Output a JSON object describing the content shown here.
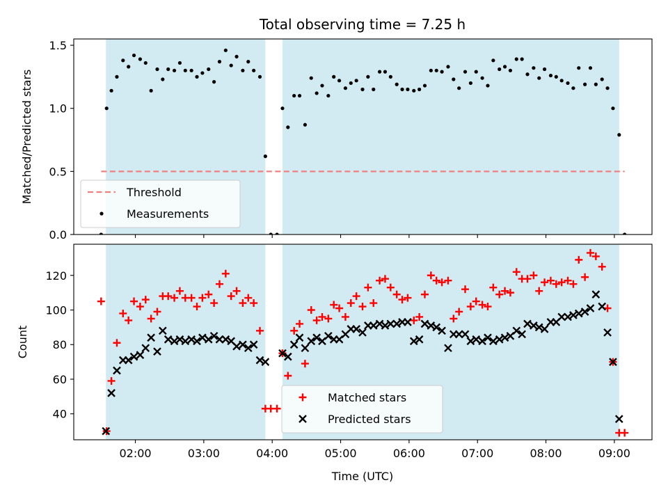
{
  "chart_data": {
    "title": "Total observing time = 7.25 h",
    "xlabel": "Time (UTC)",
    "x_unit": "UTC time (decimal hours)",
    "xlim": [
      1.1,
      9.55
    ],
    "xticks": [
      {
        "value": 2,
        "label": "02:00"
      },
      {
        "value": 3,
        "label": "03:00"
      },
      {
        "value": 4,
        "label": "04:00"
      },
      {
        "value": 5,
        "label": "05:00"
      },
      {
        "value": 6,
        "label": "06:00"
      },
      {
        "value": 7,
        "label": "07:00"
      },
      {
        "value": 8,
        "label": "08:00"
      },
      {
        "value": 9,
        "label": "09:00"
      }
    ],
    "shaded_intervals": [
      [
        1.57,
        3.9
      ],
      [
        4.15,
        9.07
      ]
    ],
    "shade_color": "#add8e6",
    "panels": [
      {
        "type": "scatter",
        "ylabel": "Matched/Predicted stars",
        "ylim": [
          0,
          1.55
        ],
        "yticks": [
          {
            "value": 0.0,
            "label": "0.0"
          },
          {
            "value": 0.5,
            "label": "0.5"
          },
          {
            "value": 1.0,
            "label": "1.0"
          },
          {
            "value": 1.5,
            "label": "1.5"
          }
        ],
        "threshold": {
          "name": "Threshold",
          "value": 0.5,
          "x_range": [
            1.5,
            9.15
          ],
          "color": "#f08080"
        },
        "series": [
          {
            "name": "Measurements",
            "marker": "dot",
            "color": "#000000",
            "x": [
              1.5,
              1.58,
              1.65,
              1.73,
              1.82,
              1.9,
              1.98,
              2.07,
              2.15,
              2.23,
              2.32,
              2.4,
              2.48,
              2.57,
              2.65,
              2.73,
              2.82,
              2.9,
              2.98,
              3.07,
              3.15,
              3.23,
              3.32,
              3.4,
              3.48,
              3.57,
              3.65,
              3.73,
              3.82,
              3.9,
              3.98,
              4.07,
              4.15,
              4.23,
              4.32,
              4.4,
              4.48,
              4.57,
              4.65,
              4.73,
              4.82,
              4.9,
              4.98,
              5.07,
              5.15,
              5.23,
              5.32,
              5.4,
              5.48,
              5.57,
              5.65,
              5.73,
              5.82,
              5.9,
              5.98,
              6.07,
              6.15,
              6.23,
              6.32,
              6.4,
              6.48,
              6.57,
              6.65,
              6.73,
              6.82,
              6.9,
              6.98,
              7.07,
              7.15,
              7.23,
              7.32,
              7.4,
              7.48,
              7.57,
              7.65,
              7.73,
              7.82,
              7.9,
              7.98,
              8.07,
              8.15,
              8.23,
              8.32,
              8.4,
              8.48,
              8.57,
              8.65,
              8.73,
              8.82,
              8.9,
              8.98,
              9.07,
              9.15
            ],
            "values": [
              0.0,
              1.0,
              1.14,
              1.25,
              1.38,
              1.33,
              1.42,
              1.39,
              1.36,
              1.14,
              1.31,
              1.23,
              1.31,
              1.3,
              1.36,
              1.3,
              1.3,
              1.25,
              1.28,
              1.31,
              1.21,
              1.37,
              1.46,
              1.34,
              1.41,
              1.3,
              1.37,
              1.3,
              1.25,
              0.62,
              0.0,
              0.0,
              1.0,
              0.85,
              1.1,
              1.1,
              0.87,
              1.24,
              1.12,
              1.18,
              1.1,
              1.25,
              1.22,
              1.16,
              1.2,
              1.22,
              1.15,
              1.25,
              1.15,
              1.29,
              1.29,
              1.25,
              1.19,
              1.15,
              1.15,
              1.14,
              1.15,
              1.18,
              1.3,
              1.3,
              1.29,
              1.33,
              1.23,
              1.16,
              1.29,
              1.2,
              1.29,
              1.24,
              1.18,
              1.38,
              1.31,
              1.33,
              1.3,
              1.39,
              1.39,
              1.27,
              1.32,
              1.24,
              1.31,
              1.26,
              1.25,
              1.22,
              1.2,
              1.16,
              1.32,
              1.19,
              1.32,
              1.19,
              1.23,
              1.16,
              1.0,
              0.79,
              0.0
            ]
          }
        ],
        "legend": {
          "position": "lower-left",
          "entries": [
            "Threshold",
            "Measurements"
          ]
        }
      },
      {
        "type": "scatter",
        "ylabel": "Count",
        "ylim": [
          25,
          138
        ],
        "yticks": [
          {
            "value": 40,
            "label": "40"
          },
          {
            "value": 60,
            "label": "60"
          },
          {
            "value": 80,
            "label": "80"
          },
          {
            "value": 100,
            "label": "100"
          },
          {
            "value": 120,
            "label": "120"
          }
        ],
        "series": [
          {
            "name": "Matched stars",
            "marker": "plus",
            "color": "#ff0000",
            "x": [
              1.5,
              1.58,
              1.65,
              1.73,
              1.82,
              1.9,
              1.98,
              2.07,
              2.15,
              2.23,
              2.32,
              2.4,
              2.48,
              2.57,
              2.65,
              2.73,
              2.82,
              2.9,
              2.98,
              3.07,
              3.15,
              3.23,
              3.32,
              3.4,
              3.48,
              3.57,
              3.65,
              3.73,
              3.82,
              3.9,
              3.98,
              4.07,
              4.15,
              4.23,
              4.32,
              4.4,
              4.48,
              4.57,
              4.65,
              4.73,
              4.82,
              4.9,
              4.98,
              5.07,
              5.15,
              5.23,
              5.32,
              5.4,
              5.48,
              5.57,
              5.65,
              5.73,
              5.82,
              5.9,
              5.98,
              6.07,
              6.15,
              6.23,
              6.32,
              6.4,
              6.48,
              6.57,
              6.65,
              6.73,
              6.82,
              6.9,
              6.98,
              7.07,
              7.15,
              7.23,
              7.32,
              7.4,
              7.48,
              7.57,
              7.65,
              7.73,
              7.82,
              7.9,
              7.98,
              8.07,
              8.15,
              8.23,
              8.32,
              8.4,
              8.48,
              8.57,
              8.65,
              8.73,
              8.82,
              8.9,
              8.98,
              9.07,
              9.15
            ],
            "values": [
              105,
              30,
              59,
              81,
              98,
              94,
              105,
              102,
              106,
              95,
              99,
              108,
              108,
              107,
              111,
              107,
              107,
              102,
              107,
              109,
              104,
              115,
              121,
              108,
              111,
              104,
              107,
              104,
              88,
              43,
              43,
              43,
              75,
              62,
              88,
              92,
              69,
              100,
              94,
              96,
              95,
              103,
              101,
              96,
              104,
              108,
              102,
              113,
              104,
              117,
              118,
              113,
              109,
              106,
              107,
              94,
              96,
              109,
              120,
              117,
              116,
              117,
              95,
              99,
              112,
              102,
              105,
              103,
              102,
              113,
              109,
              111,
              110,
              122,
              118,
              118,
              120,
              111,
              116,
              117,
              115,
              116,
              117,
              115,
              129,
              119,
              133,
              131,
              125,
              101,
              70,
              29,
              29
            ]
          },
          {
            "name": "Predicted stars",
            "marker": "x",
            "color": "#000000",
            "x": [
              1.57,
              1.65,
              1.73,
              1.82,
              1.9,
              1.98,
              2.07,
              2.15,
              2.23,
              2.32,
              2.4,
              2.48,
              2.57,
              2.65,
              2.73,
              2.82,
              2.9,
              2.98,
              3.07,
              3.15,
              3.23,
              3.32,
              3.4,
              3.48,
              3.57,
              3.65,
              3.73,
              3.82,
              3.9,
              4.15,
              4.23,
              4.32,
              4.4,
              4.48,
              4.57,
              4.65,
              4.73,
              4.82,
              4.9,
              4.98,
              5.07,
              5.15,
              5.23,
              5.32,
              5.4,
              5.48,
              5.57,
              5.65,
              5.73,
              5.82,
              5.9,
              5.98,
              6.07,
              6.15,
              6.23,
              6.32,
              6.4,
              6.48,
              6.57,
              6.65,
              6.73,
              6.82,
              6.9,
              6.98,
              7.07,
              7.15,
              7.23,
              7.32,
              7.4,
              7.48,
              7.57,
              7.65,
              7.73,
              7.82,
              7.9,
              7.98,
              8.07,
              8.15,
              8.23,
              8.32,
              8.4,
              8.48,
              8.57,
              8.65,
              8.73,
              8.82,
              8.9,
              8.98,
              9.07
            ],
            "values": [
              30,
              52,
              65,
              71,
              71,
              73,
              74,
              78,
              84,
              76,
              88,
              83,
              82,
              83,
              82,
              83,
              82,
              84,
              83,
              85,
              83,
              83,
              82,
              79,
              80,
              78,
              80,
              71,
              70,
              75,
              73,
              80,
              84,
              78,
              82,
              84,
              82,
              85,
              83,
              83,
              86,
              89,
              89,
              87,
              91,
              91,
              92,
              91,
              92,
              92,
              93,
              93,
              82,
              83,
              92,
              91,
              90,
              88,
              78,
              86,
              86,
              86,
              82,
              83,
              82,
              84,
              82,
              83,
              84,
              85,
              88,
              86,
              92,
              91,
              90,
              89,
              93,
              93,
              96,
              96,
              97,
              98,
              99,
              101,
              109,
              102,
              87,
              70,
              37
            ]
          }
        ],
        "legend": {
          "position": "lower-center",
          "entries": [
            "Matched stars",
            "Predicted stars"
          ]
        }
      }
    ]
  }
}
